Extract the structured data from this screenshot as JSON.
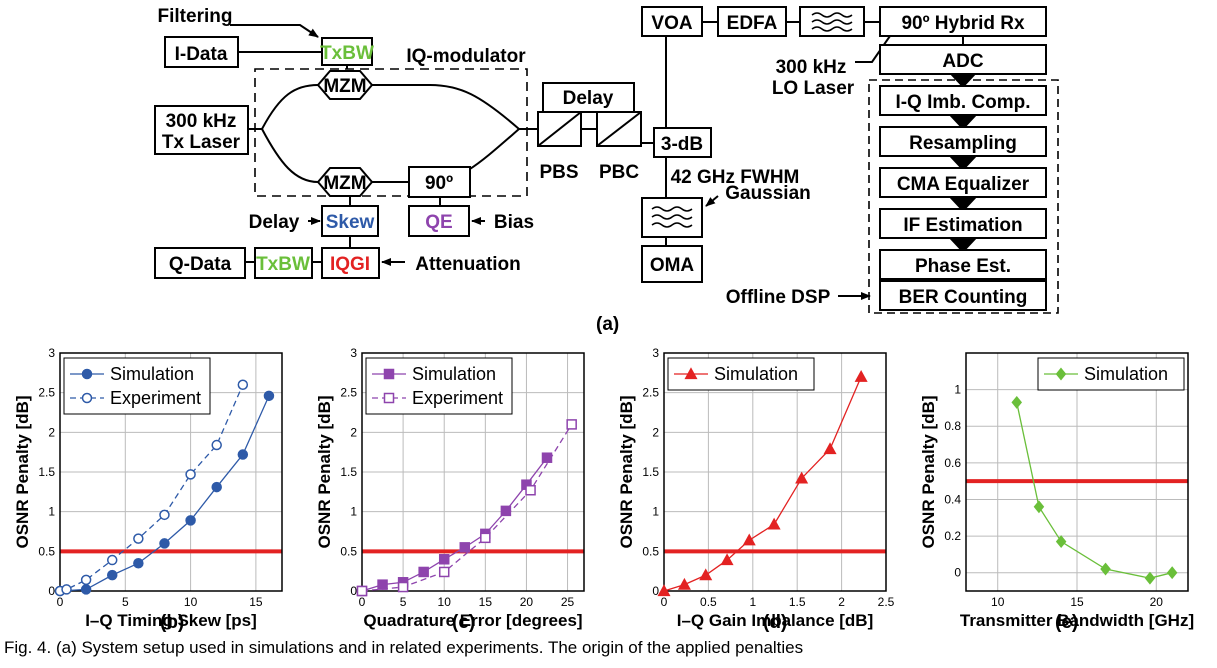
{
  "diagram": {
    "filtering": "Filtering",
    "i_data": "I-Data",
    "q_data": "Q-Data",
    "txbw_top": "TxBW",
    "txbw_bottom": "TxBW",
    "iq_modulator": "IQ-modulator",
    "mzm_top": "MZM",
    "mzm_bottom": "MZM",
    "phase_90": "90º",
    "tx_laser_line1": "300 kHz",
    "tx_laser_line2": "Tx Laser",
    "delay_label": "Delay",
    "skew": "Skew",
    "qe": "QE",
    "bias": "Bias",
    "iqgi": "IQGI",
    "attenuation": "Attenuation",
    "pol_delay": "Delay",
    "pbs": "PBS",
    "pbc": "PBC",
    "coupler": "3-dB",
    "voa": "VOA",
    "edfa": "EDFA",
    "filter_line1": "42 GHz FWHM",
    "filter_line2": "Gaussian",
    "oma": "OMA",
    "hybrid_rx": "90º Hybrid Rx",
    "adc": "ADC",
    "lo_line1": "300 kHz",
    "lo_line2": "LO Laser",
    "dsp_blocks": [
      "I-Q Imb. Comp.",
      "Resampling",
      "CMA Equalizer",
      "IF Estimation",
      "Phase Est.",
      "BER Counting"
    ],
    "offline_dsp": "Offline DSP",
    "caption_a": "(a)",
    "colors": {
      "txbw": "#6abf3a",
      "skew": "#2e5aa8",
      "qe": "#8e44ad",
      "iqgi": "#e32222"
    }
  },
  "captions": {
    "b": "(b)",
    "c": "(c)",
    "d": "(d)",
    "e": "(e)"
  },
  "figure_caption": "Fig. 4. (a) System setup used in simulations and in related experiments. The origin of the applied penalties",
  "chart_data": [
    {
      "type": "line",
      "xlabel": "I–Q Timing Skew [ps]",
      "ylabel": "OSNR Penalty [dB]",
      "xlim": [
        0,
        17
      ],
      "ylim": [
        0,
        3
      ],
      "xticks": [
        0,
        5,
        10,
        15
      ],
      "yticks": [
        0,
        0.5,
        1,
        1.5,
        2,
        2.5,
        3
      ],
      "threshold": 0.5,
      "series": [
        {
          "name": "Simulation",
          "color": "#2e5aa8",
          "marker": "circle-filled",
          "dashed": false,
          "x": [
            0,
            2,
            4,
            6,
            8,
            10,
            12,
            14,
            16
          ],
          "y": [
            0,
            0.02,
            0.2,
            0.35,
            0.6,
            0.89,
            1.31,
            1.72,
            2.46
          ]
        },
        {
          "name": "Experiment",
          "color": "#2e5aa8",
          "marker": "circle-open",
          "dashed": true,
          "x": [
            0,
            0.5,
            2,
            4,
            6,
            8,
            10,
            12,
            14
          ],
          "y": [
            0,
            0.02,
            0.14,
            0.39,
            0.66,
            0.96,
            1.47,
            1.84,
            2.6
          ]
        }
      ],
      "legend": "top-left"
    },
    {
      "type": "line",
      "xlabel": "Quadrature Error [degrees]",
      "ylabel": "OSNR Penalty [dB]",
      "xlim": [
        0,
        27
      ],
      "ylim": [
        0,
        3
      ],
      "xticks": [
        0,
        5,
        10,
        15,
        20,
        25
      ],
      "yticks": [
        0,
        0.5,
        1,
        1.5,
        2,
        2.5,
        3
      ],
      "threshold": 0.5,
      "series": [
        {
          "name": "Simulation",
          "color": "#8e44ad",
          "marker": "square-filled",
          "dashed": false,
          "x": [
            0,
            2.5,
            5,
            7.5,
            10,
            12.5,
            15,
            17.5,
            20,
            22.5
          ],
          "y": [
            0,
            0.08,
            0.11,
            0.24,
            0.4,
            0.55,
            0.72,
            1.01,
            1.34,
            1.68
          ]
        },
        {
          "name": "Experiment",
          "color": "#8e44ad",
          "marker": "square-open",
          "dashed": true,
          "x": [
            0,
            5,
            10,
            15,
            20.5,
            25.5
          ],
          "y": [
            0,
            0.05,
            0.24,
            0.67,
            1.27,
            2.1
          ]
        }
      ],
      "legend": "top-left"
    },
    {
      "type": "line",
      "xlabel": "I–Q Gain Imbalance [dB]",
      "ylabel": "OSNR Penalty [dB]",
      "xlim": [
        0,
        2.5
      ],
      "ylim": [
        0,
        3
      ],
      "xticks": [
        0,
        0.5,
        1,
        1.5,
        2,
        2.5
      ],
      "yticks": [
        0,
        0.5,
        1,
        1.5,
        2,
        2.5,
        3
      ],
      "threshold": 0.5,
      "series": [
        {
          "name": "Simulation",
          "color": "#e32222",
          "marker": "triangle-filled",
          "dashed": false,
          "x": [
            0,
            0.23,
            0.47,
            0.71,
            0.96,
            1.24,
            1.55,
            1.87,
            2.22
          ],
          "y": [
            0,
            0.08,
            0.2,
            0.39,
            0.64,
            0.84,
            1.42,
            1.79,
            2.7
          ]
        }
      ],
      "legend": "top-left"
    },
    {
      "type": "line",
      "xlabel": "Transmitter Bandwidth [GHz]",
      "ylabel": "OSNR Penalty [dB]",
      "xlim": [
        8,
        22
      ],
      "ylim": [
        -0.1,
        1.2
      ],
      "xticks": [
        10,
        15,
        20
      ],
      "yticks": [
        0,
        0.2,
        0.4,
        0.6,
        0.8,
        1
      ],
      "threshold": 0.5,
      "series": [
        {
          "name": "Simulation",
          "color": "#6abf3a",
          "marker": "diamond-filled",
          "dashed": false,
          "x": [
            11.2,
            12.6,
            14,
            16.8,
            19.6,
            21
          ],
          "y": [
            0.93,
            0.36,
            0.17,
            0.02,
            -0.03,
            0
          ]
        }
      ],
      "legend": "top-right"
    }
  ]
}
